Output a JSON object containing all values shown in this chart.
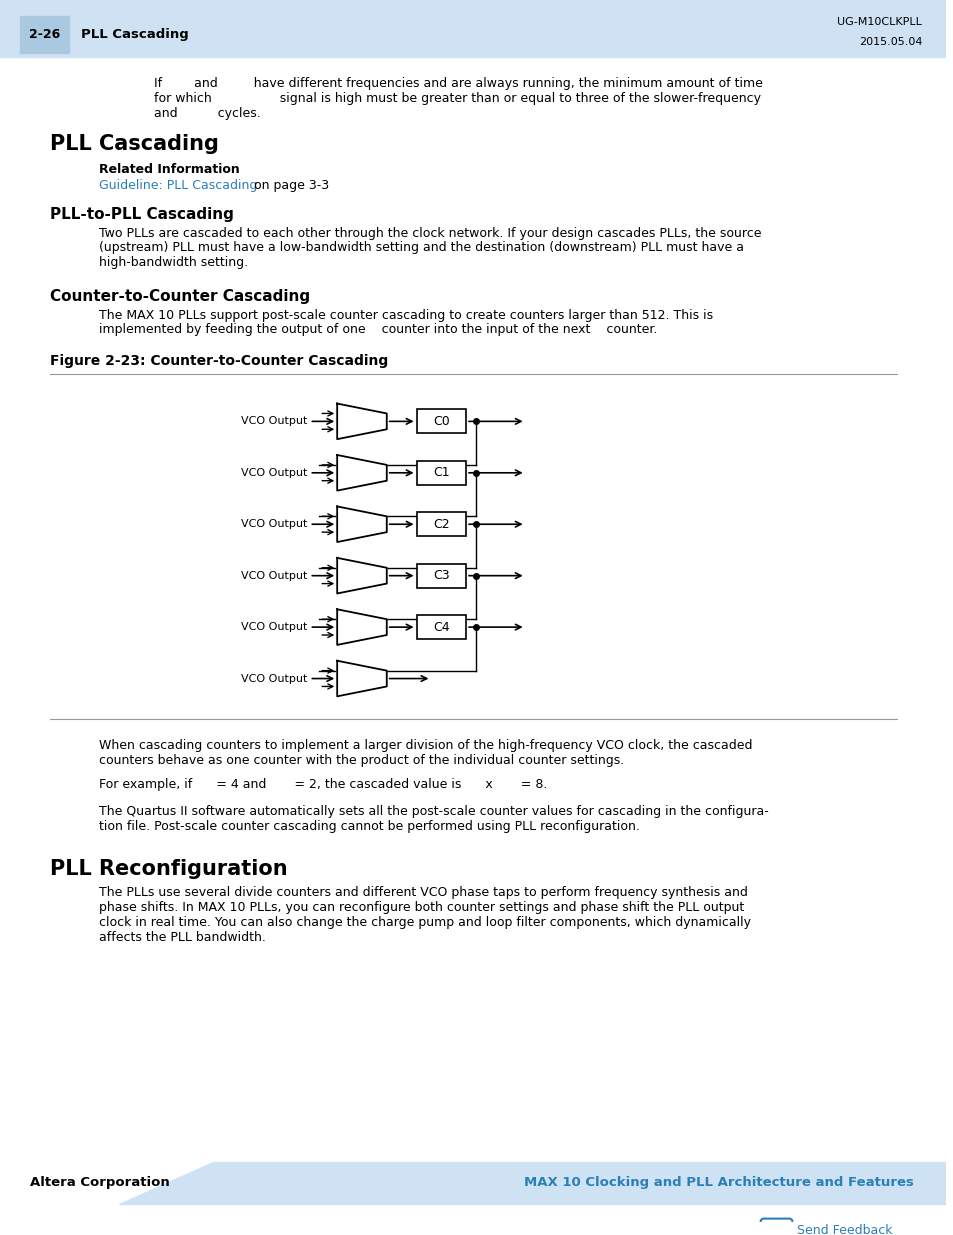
{
  "page_bg": "#ffffff",
  "header_bg": "#cfe2f3",
  "header_num": "2-26",
  "header_title": "PLL Cascading",
  "header_right1": "UG-M10CLKPLL",
  "header_right2": "2015.05.04",
  "section1_title": "PLL Cascading",
  "related_info_label": "Related Information",
  "related_info_link": "Guideline: PLL Cascading",
  "related_info_suffix": " on page 3-3",
  "subsection1_title": "PLL-to-PLL Cascading",
  "subsection2_title": "Counter-to-Counter Cascading",
  "figure_title": "Figure 2-23: Counter-to-Counter Cascading",
  "counter_labels": [
    "C0",
    "C1",
    "C2",
    "C3",
    "C4"
  ],
  "section2_title": "PLL Reconfiguration",
  "footer_left": "Altera Corporation",
  "footer_right": "MAX 10 Clocking and PLL Architecture and Features",
  "footer_feedback": "Send Feedback",
  "footer_bg": "#cfe2f3",
  "link_color": "#2980b9",
  "text_color": "#000000"
}
